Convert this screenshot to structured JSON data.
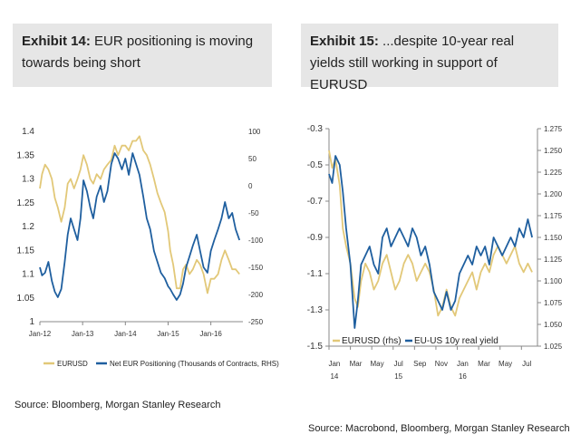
{
  "exhibit14": {
    "title_bold": "Exhibit 14:",
    "title_rest": " EUR positioning is moving towards being short",
    "source": "Source: Bloomberg, Morgan Stanley Research",
    "legend": [
      "EURUSD",
      "Net EUR Positioning (Thousands of Contracts, RHS)"
    ]
  },
  "exhibit15": {
    "title_bold": "Exhibit 15:",
    "title_rest": " ...despite 10-year real yields still working in support of EURUSD",
    "source": "Source: Macrobond, Bloomberg, Morgan Stanley Research",
    "legend": [
      "EURUSD (rhs)",
      "EU-US 10y real yield"
    ]
  },
  "colors": {
    "gold": "#e2c878",
    "blue": "#1f5f9f",
    "axis": "#888888",
    "title_bg": "#e6e6e6"
  },
  "chart_data": [
    {
      "type": "line",
      "title": "EUR positioning is moving towards being short",
      "left_axis": {
        "ticks": [
          "1.4",
          "1.35",
          "1.3",
          "1.25",
          "1.2",
          "1.15",
          "1.1",
          "1.05",
          "1"
        ],
        "ylim": [
          1.0,
          1.4
        ]
      },
      "right_axis": {
        "ticks": [
          "100",
          "50",
          "0",
          "-50",
          "-100",
          "-150",
          "-200",
          "-250"
        ],
        "ylim": [
          -250,
          100
        ]
      },
      "x_ticks": [
        "Jan-12",
        "Jan-13",
        "Jan-14",
        "Jan-15",
        "Jan-16"
      ],
      "x_range": [
        2012.0,
        2016.75
      ],
      "series": [
        {
          "name": "EURUSD",
          "axis": "left",
          "x": [
            2012.0,
            2012.05,
            2012.12,
            2012.2,
            2012.28,
            2012.35,
            2012.42,
            2012.5,
            2012.58,
            2012.65,
            2012.72,
            2012.8,
            2012.88,
            2012.95,
            2013.02,
            2013.1,
            2013.18,
            2013.25,
            2013.33,
            2013.42,
            2013.5,
            2013.58,
            2013.67,
            2013.75,
            2013.83,
            2013.92,
            2014.0,
            2014.08,
            2014.17,
            2014.25,
            2014.33,
            2014.42,
            2014.5,
            2014.58,
            2014.67,
            2014.75,
            2014.83,
            2014.92,
            2015.0,
            2015.05,
            2015.12,
            2015.2,
            2015.28,
            2015.35,
            2015.42,
            2015.5,
            2015.58,
            2015.67,
            2015.75,
            2015.83,
            2015.92,
            2016.0,
            2016.08,
            2016.17,
            2016.25,
            2016.33,
            2016.42,
            2016.5,
            2016.58,
            2016.67
          ],
          "values": [
            1.28,
            1.31,
            1.33,
            1.32,
            1.3,
            1.26,
            1.24,
            1.21,
            1.24,
            1.29,
            1.3,
            1.28,
            1.3,
            1.32,
            1.35,
            1.33,
            1.3,
            1.29,
            1.31,
            1.3,
            1.32,
            1.33,
            1.34,
            1.37,
            1.35,
            1.37,
            1.37,
            1.36,
            1.38,
            1.38,
            1.39,
            1.36,
            1.35,
            1.33,
            1.3,
            1.27,
            1.25,
            1.23,
            1.19,
            1.15,
            1.12,
            1.07,
            1.07,
            1.11,
            1.12,
            1.1,
            1.11,
            1.13,
            1.12,
            1.1,
            1.06,
            1.09,
            1.09,
            1.1,
            1.13,
            1.15,
            1.13,
            1.11,
            1.11,
            1.1
          ]
        },
        {
          "name": "Net EUR Positioning (Thousands of Contracts, RHS)",
          "axis": "right",
          "x": [
            2012.0,
            2012.05,
            2012.12,
            2012.2,
            2012.28,
            2012.35,
            2012.42,
            2012.5,
            2012.58,
            2012.65,
            2012.72,
            2012.8,
            2012.88,
            2012.95,
            2013.02,
            2013.1,
            2013.18,
            2013.25,
            2013.33,
            2013.42,
            2013.5,
            2013.58,
            2013.67,
            2013.75,
            2013.83,
            2013.92,
            2014.0,
            2014.08,
            2014.17,
            2014.25,
            2014.33,
            2014.42,
            2014.5,
            2014.58,
            2014.67,
            2014.75,
            2014.83,
            2014.92,
            2015.0,
            2015.05,
            2015.12,
            2015.2,
            2015.28,
            2015.35,
            2015.42,
            2015.5,
            2015.58,
            2015.67,
            2015.75,
            2015.83,
            2015.92,
            2016.0,
            2016.08,
            2016.17,
            2016.25,
            2016.33,
            2016.42,
            2016.5,
            2016.58,
            2016.67
          ],
          "values": [
            -150,
            -165,
            -160,
            -140,
            -175,
            -195,
            -205,
            -190,
            -140,
            -90,
            -60,
            -80,
            -100,
            -60,
            10,
            -10,
            -40,
            -60,
            -20,
            0,
            -30,
            -10,
            40,
            60,
            50,
            30,
            50,
            20,
            60,
            40,
            20,
            -20,
            -60,
            -80,
            -120,
            -140,
            -160,
            -170,
            -185,
            -190,
            -200,
            -210,
            -200,
            -180,
            -150,
            -130,
            -110,
            -90,
            -120,
            -150,
            -160,
            -120,
            -100,
            -80,
            -60,
            -30,
            -60,
            -50,
            -80,
            -100
          ]
        }
      ]
    },
    {
      "type": "line",
      "title": "...despite 10-year real yields still working in support of EURUSD",
      "left_axis": {
        "ticks": [
          "-0.3",
          "-0.5",
          "-0.7",
          "-0.9",
          "-1.1",
          "-1.3",
          "-1.5"
        ],
        "ylim": [
          -1.5,
          -0.3
        ]
      },
      "right_axis": {
        "ticks": [
          "1.275",
          "1.250",
          "1.225",
          "1.200",
          "1.175",
          "1.150",
          "1.125",
          "1.100",
          "1.075",
          "1.050",
          "1.025"
        ],
        "ylim": [
          1.025,
          1.275
        ]
      },
      "x_ticks": [
        "Jan",
        "Mar",
        "May",
        "Jul",
        "Sep",
        "Nov",
        "Jan",
        "Mar",
        "May",
        "Jul"
      ],
      "x_year_labels": [
        "14",
        "15",
        "16"
      ],
      "x_range": [
        0,
        19.5
      ],
      "series": [
        {
          "name": "EURUSD (rhs)",
          "axis": "right",
          "x": [
            0,
            0.3,
            0.6,
            1.0,
            1.3,
            1.6,
            2.0,
            2.4,
            2.7,
            3.0,
            3.4,
            3.8,
            4.2,
            4.6,
            5.0,
            5.4,
            5.8,
            6.2,
            6.6,
            7.0,
            7.4,
            7.8,
            8.2,
            8.6,
            9.0,
            9.4,
            9.8,
            10.2,
            10.6,
            11.0,
            11.4,
            11.8,
            12.2,
            12.6,
            13.0,
            13.4,
            13.8,
            14.2,
            14.6,
            15.0,
            15.4,
            15.8,
            16.2,
            16.6,
            17.0,
            17.4,
            17.8,
            18.2,
            18.6,
            19.0
          ],
          "values": [
            1.25,
            1.23,
            1.24,
            1.21,
            1.16,
            1.14,
            1.12,
            1.08,
            1.07,
            1.1,
            1.12,
            1.11,
            1.09,
            1.1,
            1.12,
            1.13,
            1.11,
            1.09,
            1.1,
            1.12,
            1.13,
            1.12,
            1.1,
            1.11,
            1.12,
            1.11,
            1.09,
            1.06,
            1.07,
            1.09,
            1.07,
            1.06,
            1.08,
            1.09,
            1.1,
            1.11,
            1.09,
            1.11,
            1.12,
            1.11,
            1.13,
            1.14,
            1.13,
            1.12,
            1.13,
            1.14,
            1.12,
            1.11,
            1.12,
            1.11
          ]
        },
        {
          "name": "EU-US 10y real yield",
          "axis": "left",
          "x": [
            0,
            0.3,
            0.6,
            1.0,
            1.3,
            1.6,
            2.0,
            2.4,
            2.7,
            3.0,
            3.4,
            3.8,
            4.2,
            4.6,
            5.0,
            5.4,
            5.8,
            6.2,
            6.6,
            7.0,
            7.4,
            7.8,
            8.2,
            8.6,
            9.0,
            9.4,
            9.8,
            10.2,
            10.6,
            11.0,
            11.4,
            11.8,
            12.2,
            12.6,
            13.0,
            13.4,
            13.8,
            14.2,
            14.6,
            15.0,
            15.4,
            15.8,
            16.2,
            16.6,
            17.0,
            17.4,
            17.8,
            18.2,
            18.6,
            19.0
          ],
          "values": [
            -0.55,
            -0.6,
            -0.45,
            -0.5,
            -0.65,
            -0.85,
            -1.05,
            -1.4,
            -1.25,
            -1.05,
            -1.0,
            -0.95,
            -1.05,
            -1.1,
            -0.9,
            -0.85,
            -0.95,
            -0.9,
            -0.85,
            -0.9,
            -0.95,
            -0.85,
            -0.9,
            -1.0,
            -0.95,
            -1.05,
            -1.2,
            -1.25,
            -1.3,
            -1.2,
            -1.3,
            -1.25,
            -1.1,
            -1.05,
            -1.0,
            -1.05,
            -0.95,
            -1.0,
            -0.95,
            -1.05,
            -0.9,
            -0.95,
            -1.0,
            -0.95,
            -0.9,
            -0.95,
            -0.85,
            -0.9,
            -0.8,
            -0.9
          ]
        }
      ]
    }
  ]
}
